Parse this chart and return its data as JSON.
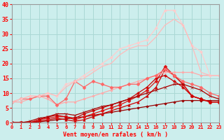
{
  "xlabel": "Vent moyen/en rafales ( km/h )",
  "xlim": [
    0,
    23
  ],
  "ylim": [
    0,
    40
  ],
  "xticks": [
    0,
    1,
    2,
    3,
    4,
    5,
    6,
    7,
    8,
    9,
    10,
    11,
    12,
    13,
    14,
    15,
    16,
    17,
    18,
    19,
    20,
    21,
    22,
    23
  ],
  "yticks": [
    0,
    5,
    10,
    15,
    20,
    25,
    30,
    35,
    40
  ],
  "background_color": "#cceeed",
  "grid_color": "#aad8d5",
  "lines": [
    {
      "x": [
        0,
        1,
        2,
        3,
        4,
        5,
        6,
        7,
        8,
        9,
        10,
        11,
        12,
        13,
        14,
        15,
        16,
        17,
        18,
        19,
        20,
        21,
        22,
        23
      ],
      "y": [
        0,
        0,
        0,
        0.3,
        0.6,
        1.0,
        1.3,
        1.7,
        2.0,
        2.5,
        3.0,
        3.5,
        4.0,
        4.5,
        5.0,
        5.5,
        6.0,
        6.5,
        7.0,
        7.5,
        7.5,
        7.5,
        7.5,
        7.5
      ],
      "color": "#990000",
      "linewidth": 0.9,
      "marker": "D",
      "markersize": 1.8,
      "markerfacecolor": "#990000"
    },
    {
      "x": [
        0,
        1,
        2,
        3,
        4,
        5,
        6,
        7,
        8,
        9,
        10,
        11,
        12,
        13,
        14,
        15,
        16,
        17,
        18,
        19,
        20,
        21,
        22,
        23
      ],
      "y": [
        0,
        0,
        0,
        0.5,
        1,
        1.5,
        1,
        0.5,
        1,
        2,
        3,
        4,
        5,
        6,
        7,
        9,
        12,
        18,
        16,
        13,
        9,
        8,
        7,
        7
      ],
      "color": "#cc0000",
      "linewidth": 0.9,
      "marker": "^",
      "markersize": 2.5,
      "markerfacecolor": "#cc0000"
    },
    {
      "x": [
        0,
        1,
        2,
        3,
        4,
        5,
        6,
        7,
        8,
        9,
        10,
        11,
        12,
        13,
        14,
        15,
        16,
        17,
        18,
        19,
        20,
        21,
        22,
        23
      ],
      "y": [
        0,
        0,
        0,
        1,
        1.5,
        2,
        2,
        1,
        2,
        3,
        4,
        5,
        6,
        7.5,
        9,
        11,
        14,
        19,
        16,
        13,
        9,
        8,
        7,
        7
      ],
      "color": "#dd1111",
      "linewidth": 0.9,
      "marker": "D",
      "markersize": 2.5,
      "markerfacecolor": "#dd1111"
    },
    {
      "x": [
        0,
        1,
        2,
        3,
        4,
        5,
        6,
        7,
        8,
        9,
        10,
        11,
        12,
        13,
        14,
        15,
        16,
        17,
        18,
        19,
        20,
        21,
        22,
        23
      ],
      "y": [
        0,
        0,
        0,
        1,
        2,
        2.5,
        2,
        1.5,
        3,
        4,
        5,
        6,
        7,
        8,
        10,
        12,
        15,
        16,
        14,
        12,
        9,
        8,
        7,
        7
      ],
      "color": "#cc0000",
      "linewidth": 0.9,
      "marker": "P",
      "markersize": 2.5,
      "markerfacecolor": "#cc0000"
    },
    {
      "x": [
        0,
        1,
        2,
        3,
        4,
        5,
        6,
        7,
        8,
        9,
        10,
        11,
        12,
        13,
        14,
        15,
        16,
        17,
        18,
        19,
        20,
        21,
        22,
        23
      ],
      "y": [
        0,
        0,
        0.5,
        1.5,
        2,
        3,
        3,
        2.5,
        3.5,
        4.5,
        5.5,
        6,
        7,
        8,
        9,
        10,
        11,
        12,
        13,
        13,
        12,
        11,
        9,
        8
      ],
      "color": "#aa0000",
      "linewidth": 0.9,
      "marker": "x",
      "markersize": 3,
      "markerfacecolor": "#aa0000"
    },
    {
      "x": [
        0,
        1,
        2,
        3,
        4,
        5,
        6,
        7,
        8,
        9,
        10,
        11,
        12,
        13,
        14,
        15,
        16,
        17,
        18,
        19,
        20,
        21,
        22,
        23
      ],
      "y": [
        7,
        7,
        8,
        9,
        8,
        6,
        7,
        7,
        8,
        9,
        10,
        11,
        12,
        13,
        14,
        15,
        16,
        17,
        17,
        17,
        17,
        16,
        16,
        16
      ],
      "color": "#ffaaaa",
      "linewidth": 0.9,
      "marker": "o",
      "markersize": 2.0,
      "markerfacecolor": "#ffaaaa"
    },
    {
      "x": [
        0,
        1,
        2,
        3,
        4,
        5,
        6,
        7,
        8,
        9,
        10,
        11,
        12,
        13,
        14,
        15,
        16,
        17,
        18,
        19,
        20,
        21,
        22,
        23
      ],
      "y": [
        7,
        8,
        8,
        9,
        9,
        6,
        8,
        14,
        12,
        14,
        13,
        12,
        12,
        13,
        13,
        15,
        16,
        18,
        16,
        14,
        13,
        12,
        10,
        9
      ],
      "color": "#ff6666",
      "linewidth": 0.9,
      "marker": "D",
      "markersize": 2.5,
      "markerfacecolor": "#ff6666"
    },
    {
      "x": [
        0,
        1,
        2,
        3,
        4,
        5,
        6,
        7,
        8,
        9,
        10,
        11,
        12,
        13,
        14,
        15,
        16,
        17,
        18,
        19,
        20,
        21,
        22,
        23
      ],
      "y": [
        7,
        8,
        9,
        9,
        10,
        9,
        13,
        14,
        16,
        18,
        20,
        22,
        25,
        26,
        27,
        28,
        32,
        38,
        38,
        33,
        26,
        24,
        16,
        16
      ],
      "color": "#ffcccc",
      "linewidth": 0.9,
      "marker": "D",
      "markersize": 2.0,
      "markerfacecolor": "#ffcccc"
    },
    {
      "x": [
        0,
        1,
        2,
        3,
        4,
        5,
        6,
        7,
        8,
        9,
        10,
        11,
        12,
        13,
        14,
        15,
        16,
        17,
        18,
        19,
        20,
        21,
        22,
        23
      ],
      "y": [
        7,
        8,
        9,
        9,
        10,
        9,
        12,
        14,
        15,
        17,
        19,
        20,
        23,
        25,
        26,
        26,
        29,
        33,
        35,
        33,
        26,
        17,
        16,
        16
      ],
      "color": "#ffbbbb",
      "linewidth": 0.9,
      "marker": "None",
      "markersize": 0,
      "markerfacecolor": "#ffbbbb"
    }
  ],
  "xlabel_fontsize": 6,
  "tick_fontsize": 5,
  "ylabel_fontsize": 6
}
